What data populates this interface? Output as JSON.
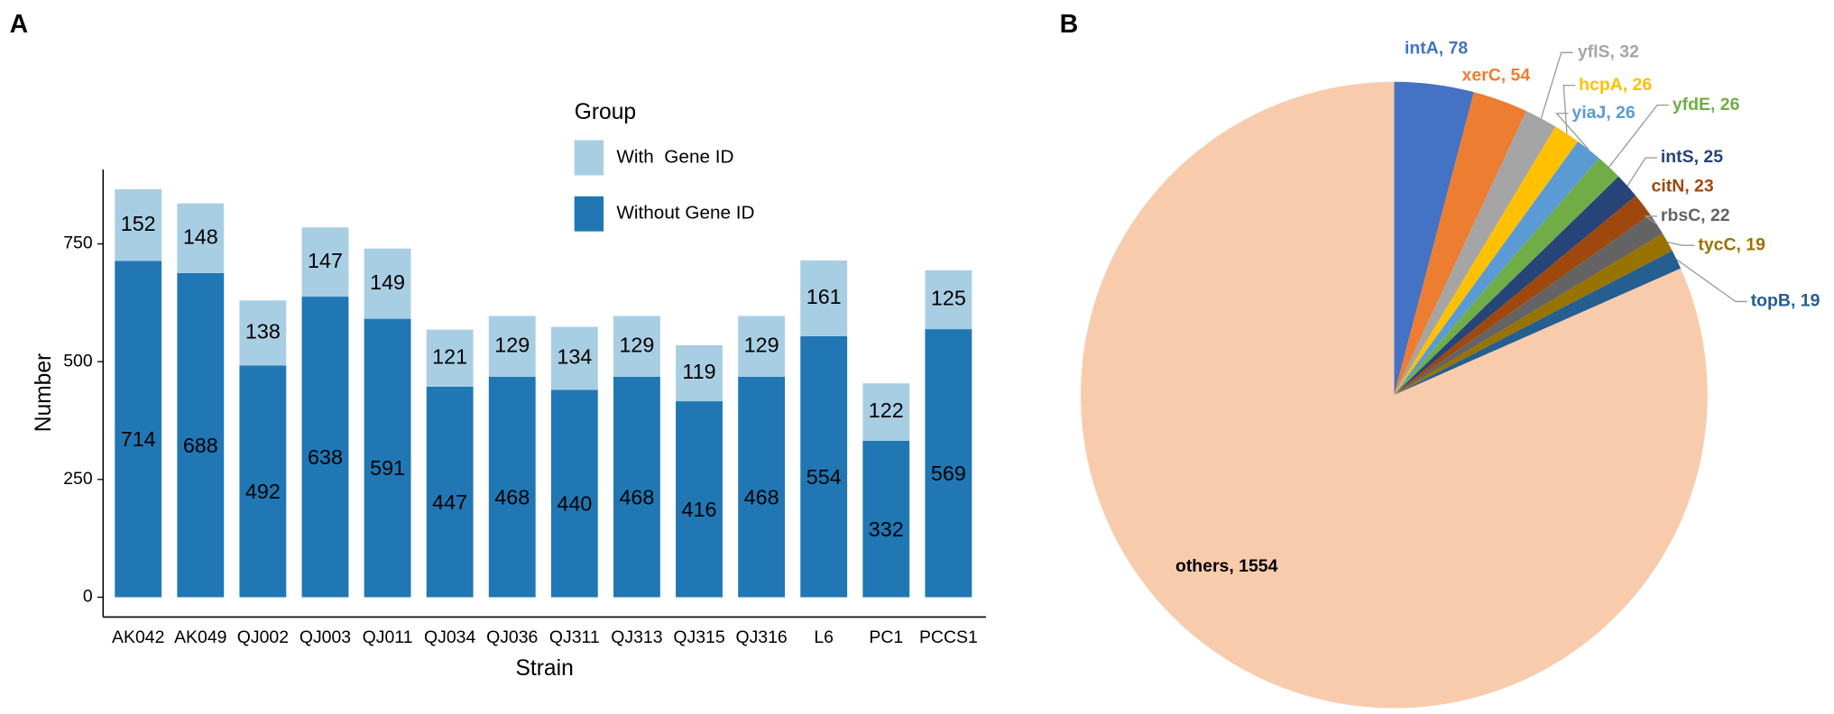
{
  "chart_data": [
    {
      "type": "bar",
      "panel": "A",
      "stacked": true,
      "xlabel": "Strain",
      "ylabel": "Number",
      "legend_title": "Group",
      "categories": [
        "AK042",
        "AK049",
        "QJ002",
        "QJ003",
        "QJ011",
        "QJ034",
        "QJ036",
        "QJ311",
        "QJ313",
        "QJ315",
        "QJ316",
        "L6",
        "PC1",
        "PCCS1"
      ],
      "series": [
        {
          "name": "Without Gene ID",
          "color": "#2077b4",
          "values": [
            714,
            688,
            492,
            638,
            591,
            447,
            468,
            440,
            468,
            416,
            468,
            554,
            332,
            569
          ]
        },
        {
          "name": "With  Gene ID",
          "color": "#a8cee3",
          "values": [
            152,
            148,
            138,
            147,
            149,
            121,
            129,
            134,
            129,
            119,
            129,
            161,
            122,
            125
          ]
        }
      ],
      "ylim": [
        -42,
        908
      ],
      "yticks": [
        0,
        250,
        500,
        750
      ]
    },
    {
      "type": "pie",
      "panel": "B",
      "categories": [
        "intA",
        "xerC",
        "yflS",
        "hcpA",
        "yiaJ",
        "yfdE",
        "intS",
        "citN",
        "rbsC",
        "tycC",
        "topB",
        "others"
      ],
      "values": [
        78,
        54,
        32,
        26,
        26,
        26,
        25,
        23,
        22,
        19,
        19,
        1554
      ],
      "value_labels": [
        "intA, 78",
        "xerC, 54",
        "yflS, 32",
        "hcpA, 26",
        "yiaJ, 26",
        "yfdE, 26",
        "intS, 25",
        "citN, 23",
        "rbsC, 22",
        "tycC, 19",
        "topB, 19",
        "others, 1554"
      ],
      "colors": [
        "#4472c4",
        "#ed7d31",
        "#a5a5a5",
        "#ffc000",
        "#5b9bd5",
        "#70ad47",
        "#264478",
        "#9e480e",
        "#636363",
        "#997300",
        "#255e91",
        "#f8cbad"
      ]
    }
  ]
}
